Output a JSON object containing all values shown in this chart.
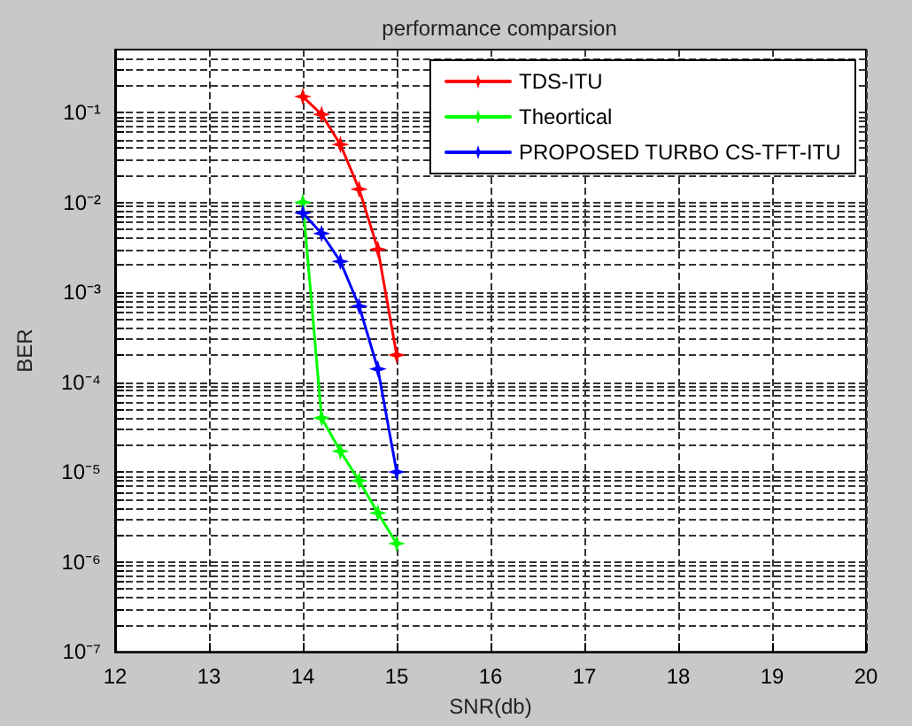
{
  "chart_data": {
    "type": "line",
    "title": "performance comparsion",
    "xlabel": "SNR(db)",
    "ylabel": "BER",
    "x": [
      14,
      14.2,
      14.4,
      14.6,
      14.8,
      15
    ],
    "series": [
      {
        "name": "TDS-ITU",
        "color": "#ff0000",
        "values": [
          0.15,
          0.095,
          0.044,
          0.014,
          0.003,
          0.0002
        ]
      },
      {
        "name": "Theortical",
        "color": "#00ff00",
        "values": [
          0.01,
          4e-05,
          1.7e-05,
          8e-06,
          3.5e-06,
          1.6e-06
        ]
      },
      {
        "name": "PROPOSED TURBO CS-TFT-ITU",
        "color": "#0000ff",
        "values": [
          0.0076,
          0.0045,
          0.0022,
          0.0007,
          0.00014,
          1e-05
        ]
      }
    ],
    "xlim": [
      12,
      20
    ],
    "xticks": [
      12,
      13,
      14,
      15,
      16,
      17,
      18,
      19,
      20
    ],
    "ylim": [
      1e-07,
      0.5
    ],
    "yticks": [
      {
        "value": 1e-07,
        "label": "10⁻⁷"
      },
      {
        "value": 1e-06,
        "label": "10⁻⁶"
      },
      {
        "value": 1e-05,
        "label": "10⁻⁵"
      },
      {
        "value": 0.0001,
        "label": "10⁻⁴"
      },
      {
        "value": 0.001,
        "label": "10⁻³"
      },
      {
        "value": 0.01,
        "label": "10⁻²"
      },
      {
        "value": 0.1,
        "label": "10⁻¹"
      }
    ],
    "log": "y",
    "grid": true,
    "legend": "top right",
    "marker": "star",
    "line_style": "solid"
  }
}
